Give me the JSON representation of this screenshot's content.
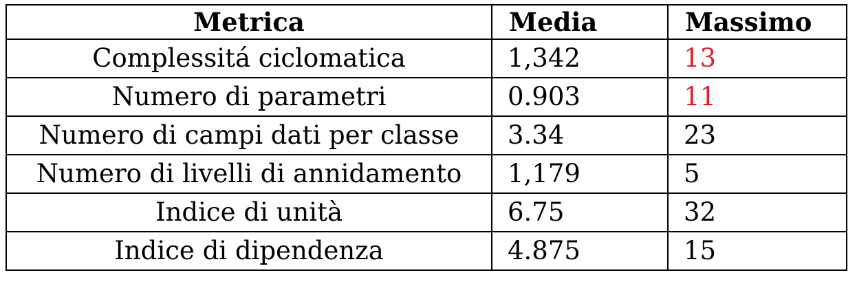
{
  "table": {
    "headers": [
      "Metrica",
      "Media",
      "Massimo"
    ],
    "highlight_color": "#e0202a",
    "rows": [
      {
        "metric": "Complessitá ciclomatica",
        "media": "1,342",
        "massimo": "13",
        "massimo_highlighted": true
      },
      {
        "metric": "Numero di parametri",
        "media": "0.903",
        "massimo": "11",
        "massimo_highlighted": true
      },
      {
        "metric": "Numero di campi dati per classe",
        "media": "3.34",
        "massimo": "23",
        "massimo_highlighted": false
      },
      {
        "metric": "Numero di livelli di annidamento",
        "media": "1,179",
        "massimo": "5",
        "massimo_highlighted": false
      },
      {
        "metric": "Indice di unità",
        "media": "6.75",
        "massimo": "32",
        "massimo_highlighted": false
      },
      {
        "metric": "Indice di dipendenza",
        "media": "4.875",
        "massimo": "15",
        "massimo_highlighted": false
      }
    ]
  }
}
